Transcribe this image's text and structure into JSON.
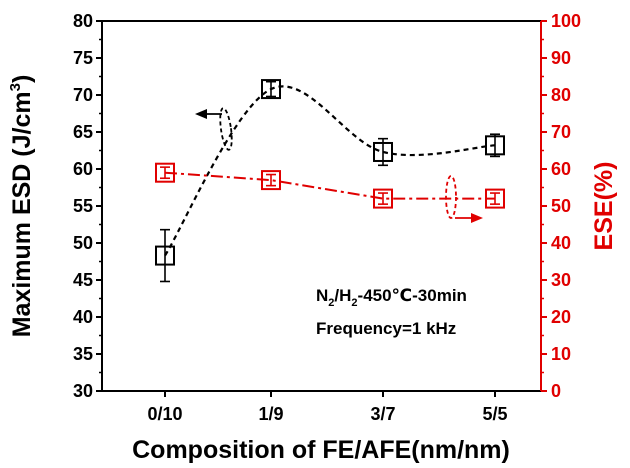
{
  "chart_data": {
    "type": "scatter",
    "categories": [
      "0/10",
      "1/9",
      "3/7",
      "5/5"
    ],
    "xlabel": "Composition of FE/AFE(nm/nm)",
    "ylabel_left": "Maximum ESD (J/cm",
    "ylabel_left_sup": "3",
    "ylabel_left_close": ")",
    "ylabel_right": "ESE(%)",
    "ylim_left": [
      30,
      80
    ],
    "yticks_left": [
      "30",
      "35",
      "40",
      "45",
      "50",
      "55",
      "60",
      "65",
      "70",
      "75",
      "80"
    ],
    "ylim_right": [
      0,
      100
    ],
    "yticks_right": [
      "0",
      "10",
      "20",
      "30",
      "40",
      "50",
      "60",
      "70",
      "80",
      "90",
      "100"
    ],
    "series": [
      {
        "axis": "left",
        "color": "#000000",
        "marker": "open-square",
        "line": "dashed-smooth",
        "values": [
          48.3,
          70.8,
          62.3,
          63.2
        ],
        "err": [
          3.5,
          1.0,
          1.8,
          1.5
        ]
      },
      {
        "axis": "right",
        "color": "#e00000",
        "marker": "open-square",
        "line": "dash-dot",
        "values": [
          59,
          57,
          52,
          52
        ],
        "err": [
          1.5,
          1.5,
          1.5,
          1.5
        ]
      }
    ],
    "annotations": {
      "line1_pre": "N",
      "line1_sub1": "2",
      "line1_mid": "/H",
      "line1_sub2": "2",
      "line1_post": "-450℃-30min",
      "line2": "Frequency=1 kHz"
    },
    "colors": {
      "left_axis": "#000000",
      "right_axis": "#e00000"
    }
  }
}
